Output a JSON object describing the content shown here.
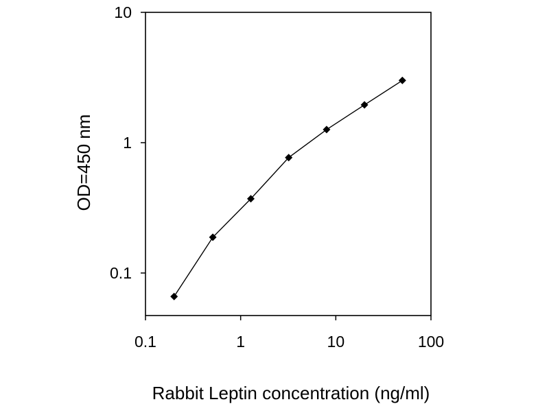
{
  "chart_data": {
    "type": "line",
    "title": "",
    "xlabel": "Rabbit Leptin concentration (ng/ml)",
    "ylabel": "OD=450 nm",
    "xscale": "log",
    "yscale": "log",
    "xlim": [
      0.1,
      100
    ],
    "ylim": [
      0.05,
      10
    ],
    "xticks": [
      {
        "value": 0.1,
        "label": "0.1"
      },
      {
        "value": 1,
        "label": "1"
      },
      {
        "value": 10,
        "label": "10"
      },
      {
        "value": 100,
        "label": "100"
      }
    ],
    "yticks": [
      {
        "value": 0.1,
        "label": "0.1"
      },
      {
        "value": 1,
        "label": "1"
      },
      {
        "value": 10,
        "label": "10"
      }
    ],
    "grid": false,
    "legend": "none",
    "series": [
      {
        "x": [
          0.2,
          0.51,
          1.28,
          3.2,
          8,
          20,
          50
        ],
        "y": [
          0.066,
          0.188,
          0.371,
          0.769,
          1.26,
          1.95,
          3.0
        ],
        "marker": "diamond",
        "color": "#000000"
      }
    ]
  }
}
